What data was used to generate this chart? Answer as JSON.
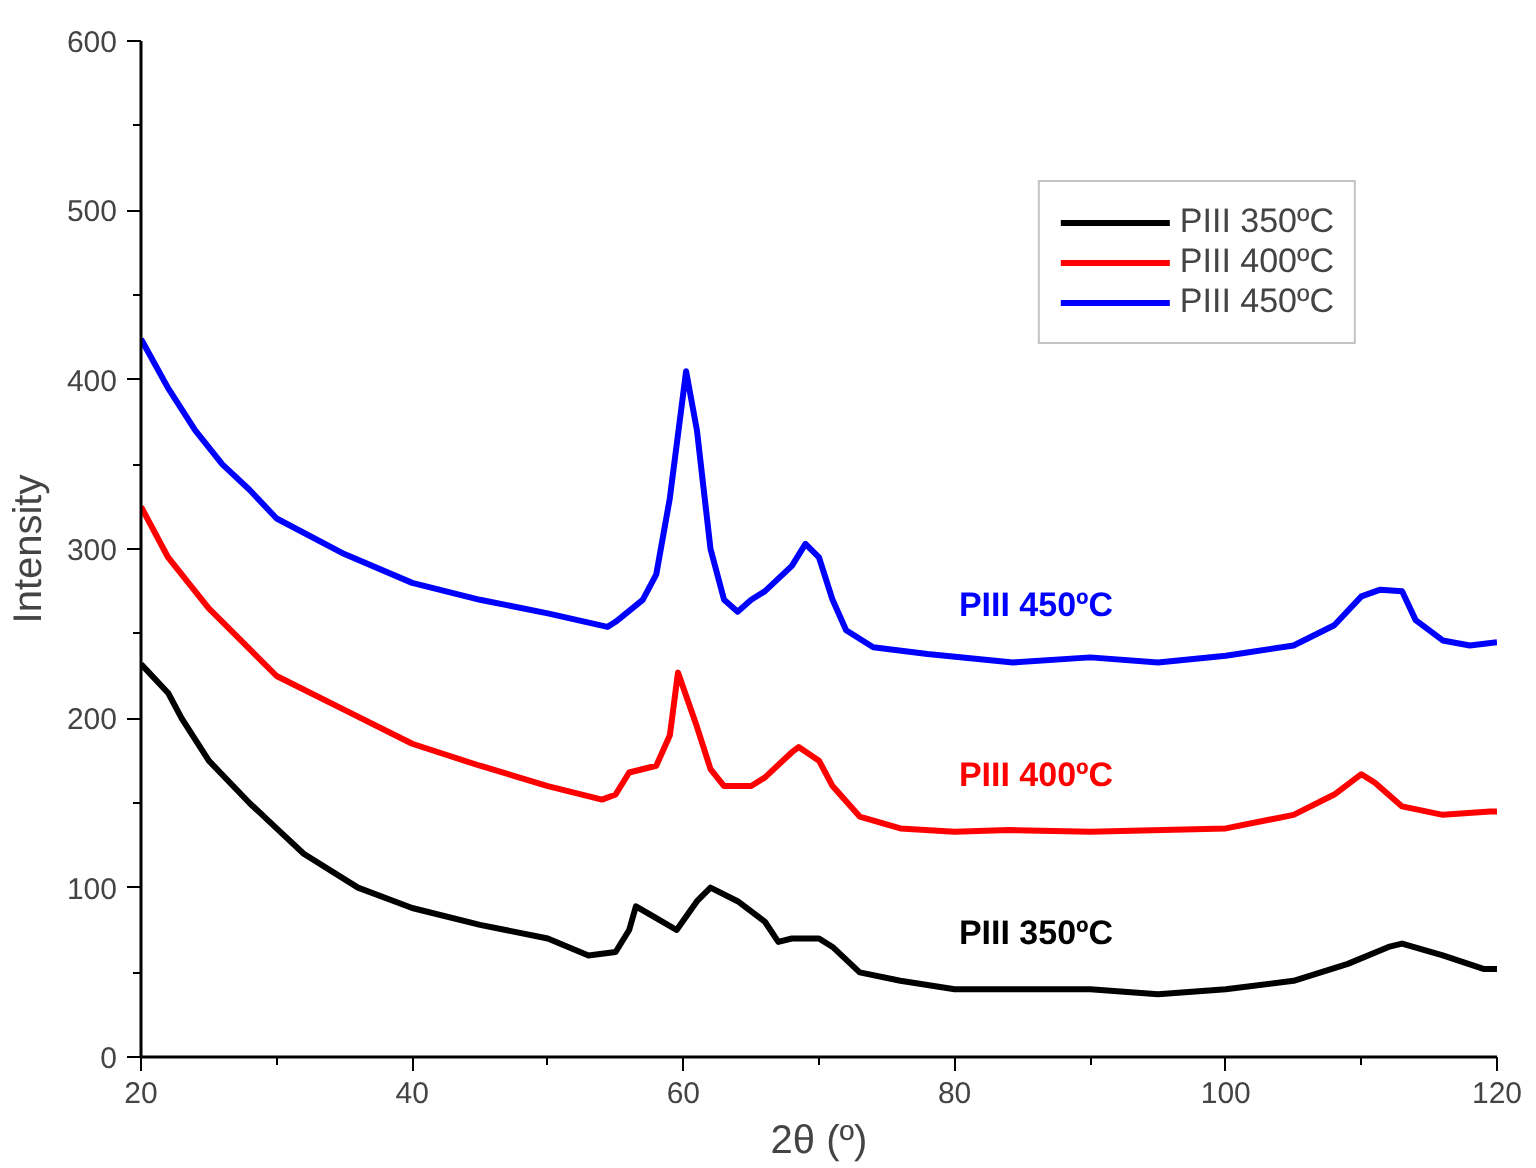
{
  "chart_data": {
    "type": "line",
    "xlabel": "2θ (º)",
    "ylabel": "Intensity",
    "xlim": [
      20,
      120
    ],
    "ylim": [
      0,
      600
    ],
    "xticks": [
      20,
      {
        "value": 30,
        "label": null
      },
      40,
      {
        "value": 50,
        "label": null
      },
      60,
      {
        "value": 70,
        "label": null
      },
      80,
      {
        "value": 90,
        "label": null
      },
      100,
      {
        "value": 110,
        "label": null
      },
      120
    ],
    "yticks": [
      0,
      {
        "value": 50,
        "label": null
      },
      100,
      {
        "value": 150,
        "label": null
      },
      200,
      {
        "value": 250,
        "label": null
      },
      300,
      {
        "value": 350,
        "label": null
      },
      400,
      {
        "value": 450,
        "label": null
      },
      500,
      {
        "value": 550,
        "label": null
      },
      600
    ],
    "grid": false,
    "legend": "top right",
    "marker": "none",
    "line_style": "solid",
    "series": [
      {
        "name": "PIII 350ºC",
        "color": "#000000",
        "x": [
          20,
          22,
          23,
          25,
          28,
          30,
          32,
          36,
          40,
          45,
          50,
          53,
          55,
          56,
          56.5,
          58,
          59.5,
          61,
          62,
          64,
          66,
          67,
          68,
          70,
          71,
          73,
          76,
          80,
          85,
          90,
          95,
          100,
          105,
          109,
          112,
          113,
          116,
          119,
          120
        ],
        "values": [
          232,
          215,
          200,
          175,
          150,
          135,
          120,
          100,
          88,
          78,
          70,
          60,
          62,
          75,
          89,
          82,
          75,
          92,
          100,
          92,
          80,
          68,
          70,
          70,
          65,
          50,
          45,
          40,
          40,
          40,
          37,
          40,
          45,
          55,
          65,
          67,
          60,
          52,
          52
        ]
      },
      {
        "name": "PIII 400ºC",
        "color": "#ff0000",
        "x": [
          20,
          22,
          25,
          28,
          30,
          35,
          40,
          45,
          50,
          54,
          55,
          56,
          58,
          59,
          59.6,
          61,
          62,
          63,
          65,
          66,
          68,
          68.5,
          70,
          71,
          73,
          76,
          80,
          84,
          90,
          100,
          105,
          108,
          110,
          111,
          113,
          116,
          119.5,
          120
        ],
        "values": [
          325,
          295,
          265,
          241,
          225,
          205,
          185,
          172,
          160,
          152,
          155,
          168,
          172,
          190,
          227,
          195,
          170,
          160,
          160,
          165,
          180,
          183,
          175,
          160,
          142,
          135,
          133,
          134,
          133,
          135,
          143,
          155,
          167,
          162,
          148,
          143,
          145,
          145
        ]
      },
      {
        "name": "PIII 450ºC",
        "color": "#0000ff",
        "x": [
          20,
          22,
          24,
          26,
          28,
          30,
          35,
          40,
          45,
          50,
          54.4,
          55,
          57,
          58,
          59,
          60.2,
          61,
          62,
          63,
          64,
          65,
          66,
          68,
          69,
          70,
          71,
          72,
          74,
          78,
          84.3,
          90,
          95,
          100,
          105,
          108,
          110,
          111.4,
          113,
          114,
          116,
          118,
          120
        ],
        "values": [
          424,
          395,
          370,
          350,
          335,
          318,
          297,
          280,
          270,
          262,
          254,
          257,
          270,
          285,
          330,
          405,
          370,
          300,
          270,
          263,
          270,
          275,
          290,
          303,
          295,
          270,
          252,
          242,
          238,
          233,
          236,
          233,
          237,
          243,
          255,
          272,
          276,
          275,
          258,
          246,
          243,
          245
        ]
      }
    ],
    "annotations": [
      "PIII 350ºC",
      "PIII 400ºC",
      "PIII 450ºC"
    ]
  }
}
